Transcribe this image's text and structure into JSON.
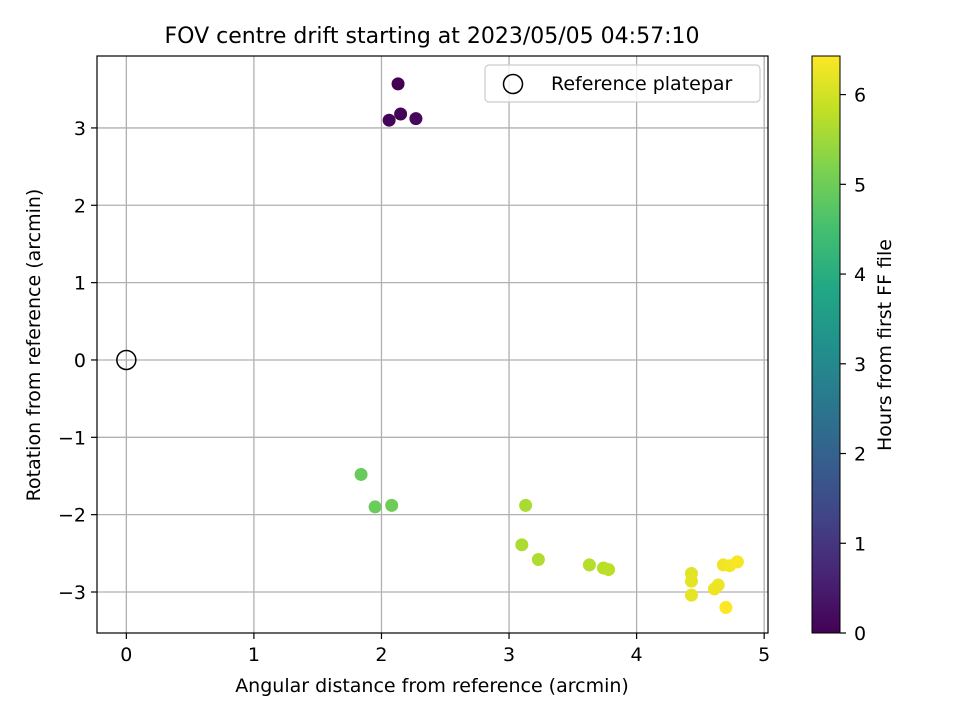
{
  "chart_data": {
    "type": "scatter",
    "title": "FOV centre drift starting at 2023/05/05 04:57:10",
    "xlabel": "Angular distance from reference (arcmin)",
    "ylabel": "Rotation from reference (arcmin)",
    "colorbar_label": "Hours from first FF file",
    "xlim": [
      -0.23,
      5.03
    ],
    "ylim": [
      -3.53,
      3.93
    ],
    "x_ticks": [
      0,
      1,
      2,
      3,
      4,
      5
    ],
    "x_tick_labels": [
      "0",
      "1",
      "2",
      "3",
      "4",
      "5"
    ],
    "y_ticks": [
      -3,
      -2,
      -1,
      0,
      1,
      2,
      3
    ],
    "y_tick_labels": [
      "−3",
      "−2",
      "−1",
      "0",
      "1",
      "2",
      "3"
    ],
    "colorbar_range": [
      0,
      6.43
    ],
    "colorbar_ticks": [
      0,
      1,
      2,
      3,
      4,
      5,
      6
    ],
    "colorbar_tick_labels": [
      "0",
      "1",
      "2",
      "3",
      "4",
      "5",
      "6"
    ],
    "colormap": "viridis",
    "grid": true,
    "legend": {
      "placement": "top-right",
      "entries": [
        "Reference platepar"
      ]
    },
    "reference_point": {
      "name": "Reference platepar",
      "x": 0,
      "y": 0
    },
    "points": [
      {
        "x": 2.13,
        "y": 3.57,
        "hours": 0.0
      },
      {
        "x": 2.15,
        "y": 3.18,
        "hours": 0.05
      },
      {
        "x": 2.06,
        "y": 3.1,
        "hours": 0.08
      },
      {
        "x": 2.27,
        "y": 3.12,
        "hours": 0.12
      },
      {
        "x": 1.84,
        "y": -1.48,
        "hours": 4.9
      },
      {
        "x": 1.95,
        "y": -1.9,
        "hours": 4.95
      },
      {
        "x": 2.08,
        "y": -1.88,
        "hours": 5.0
      },
      {
        "x": 3.13,
        "y": -1.88,
        "hours": 5.6
      },
      {
        "x": 3.1,
        "y": -2.39,
        "hours": 5.62
      },
      {
        "x": 3.23,
        "y": -2.58,
        "hours": 5.65
      },
      {
        "x": 3.63,
        "y": -2.65,
        "hours": 5.7
      },
      {
        "x": 3.74,
        "y": -2.69,
        "hours": 5.75
      },
      {
        "x": 3.78,
        "y": -2.71,
        "hours": 5.78
      },
      {
        "x": 4.43,
        "y": -2.76,
        "hours": 6.15
      },
      {
        "x": 4.43,
        "y": -2.86,
        "hours": 6.18
      },
      {
        "x": 4.43,
        "y": -3.04,
        "hours": 6.2
      },
      {
        "x": 4.61,
        "y": -2.96,
        "hours": 6.25
      },
      {
        "x": 4.64,
        "y": -2.91,
        "hours": 6.28
      },
      {
        "x": 4.68,
        "y": -2.65,
        "hours": 6.3
      },
      {
        "x": 4.73,
        "y": -2.66,
        "hours": 6.33
      },
      {
        "x": 4.79,
        "y": -2.61,
        "hours": 6.38
      },
      {
        "x": 4.7,
        "y": -3.2,
        "hours": 6.43
      }
    ]
  }
}
